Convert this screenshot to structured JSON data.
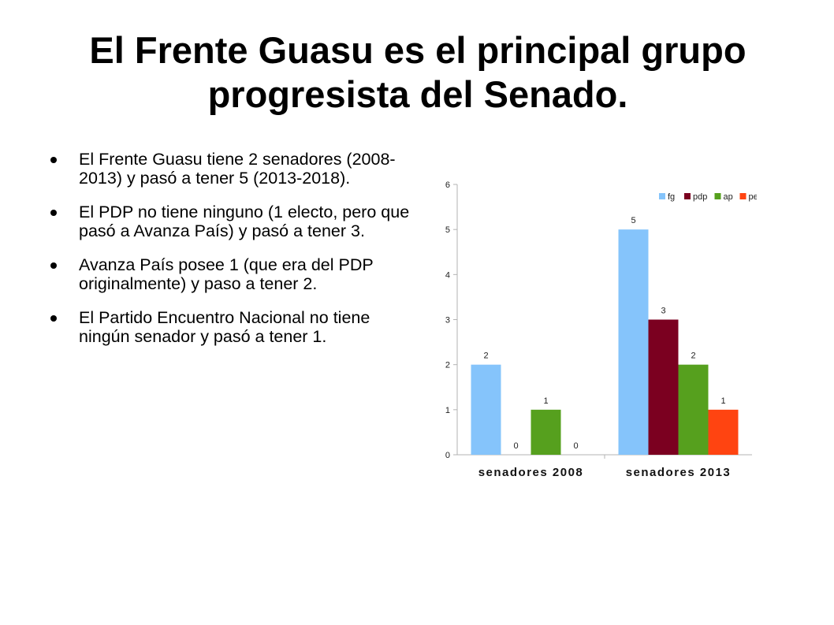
{
  "slide": {
    "title": "El Frente Guasu es el principal grupo progresista del Senado.",
    "bullets": [
      "El Frente Guasu tiene 2 senadores (2008-2013) y pasó a tener 5 (2013-2018).",
      "El PDP no tiene ninguno (1 electo, pero que pasó a Avanza País) y pasó a tener 3.",
      "Avanza País posee 1 (que era del PDP originalmente) y paso a tener 2.",
      "El Partido Encuentro Nacional no tiene ningún senador y pasó a tener 1."
    ]
  },
  "chart_data": {
    "type": "bar",
    "categories": [
      "senadores 2008",
      "senadores 2013"
    ],
    "series": [
      {
        "name": "fg",
        "values": [
          2,
          5
        ],
        "color": "#85c4fb"
      },
      {
        "name": "pdp",
        "values": [
          0,
          3
        ],
        "color": "#7b0020"
      },
      {
        "name": "ap",
        "values": [
          1,
          2
        ],
        "color": "#56a01e"
      },
      {
        "name": "pen",
        "values": [
          0,
          1
        ],
        "color": "#ff4411"
      }
    ],
    "ylim": [
      0,
      6
    ],
    "yticks": [
      0,
      1,
      2,
      3,
      4,
      5,
      6
    ],
    "grid": false,
    "legend": "top-right",
    "data_labels": true
  }
}
